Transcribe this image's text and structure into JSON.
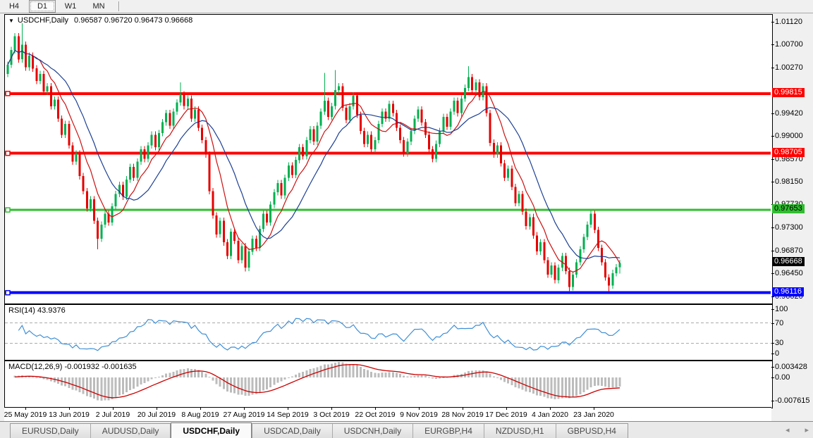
{
  "toolbar": {
    "buttons": [
      {
        "label": "H4",
        "active": false
      },
      {
        "label": "D1",
        "active": true
      },
      {
        "label": "W1",
        "active": false
      },
      {
        "label": "MN",
        "active": false
      }
    ]
  },
  "chart_header": {
    "expander_icon": "▼",
    "symbol": "USDCHF,Daily",
    "quote": "0.96587 0.96720 0.96473 0.96668"
  },
  "chart_data": {
    "type": "candlestick",
    "symbol": "USDCHF",
    "timeframe": "Daily",
    "last_quote": {
      "open": 0.96587,
      "high": 0.9672,
      "low": 0.96473,
      "close": 0.96668
    },
    "open_first": 1.0018,
    "closes": [
      1.0035,
      1.0062,
      1.0088,
      1.0045,
      1.0072,
      1.003,
      1.0052,
      1.0028,
      1.0005,
      1.0018,
      0.9985,
      0.9995,
      0.9958,
      0.997,
      0.9935,
      0.9905,
      0.9925,
      0.9885,
      0.9855,
      0.987,
      0.9828,
      0.98,
      0.9768,
      0.9785,
      0.9745,
      0.9712,
      0.9738,
      0.9758,
      0.9742,
      0.9772,
      0.9795,
      0.9812,
      0.979,
      0.9822,
      0.9845,
      0.9825,
      0.9855,
      0.9878,
      0.986,
      0.9885,
      0.9905,
      0.9882,
      0.9908,
      0.9928,
      0.9945,
      0.9922,
      0.9948,
      0.9965,
      0.998,
      0.9958,
      0.9972,
      0.9935,
      0.9952,
      0.9918,
      0.9895,
      0.9868,
      0.98,
      0.9755,
      0.972,
      0.9745,
      0.9705,
      0.968,
      0.9725,
      0.9708,
      0.9672,
      0.9698,
      0.9658,
      0.9688,
      0.9712,
      0.9695,
      0.973,
      0.9758,
      0.9742,
      0.9775,
      0.9798,
      0.9815,
      0.9792,
      0.9825,
      0.9848,
      0.983,
      0.9858,
      0.9882,
      0.9865,
      0.9895,
      0.9915,
      0.9892,
      0.9922,
      0.9948,
      0.9968,
      0.9938,
      0.9958,
      0.9988,
      0.9995,
      0.9955,
      0.9932,
      0.9958,
      0.9978,
      0.9942,
      0.9912,
      0.9888,
      0.9905,
      0.9878,
      0.9895,
      0.9925,
      0.9948,
      0.9935,
      0.9962,
      0.9945,
      0.9918,
      0.9895,
      0.987,
      0.9892,
      0.9912,
      0.9935,
      0.9952,
      0.9928,
      0.9905,
      0.9878,
      0.986,
      0.9888,
      0.9912,
      0.9938,
      0.992,
      0.9948,
      0.9968,
      0.9945,
      0.9972,
      0.9992,
      1.0012,
      0.9988,
      1.0002,
      0.9975,
      0.9995,
      0.9945,
      0.989,
      0.9868,
      0.9885,
      0.9852,
      0.9825,
      0.9842,
      0.9808,
      0.9778,
      0.9795,
      0.9762,
      0.9735,
      0.9752,
      0.9718,
      0.9688,
      0.9705,
      0.9672,
      0.9645,
      0.9662,
      0.9635,
      0.9658,
      0.968,
      0.9652,
      0.9622,
      0.9645,
      0.9668,
      0.9692,
      0.9715,
      0.9738,
      0.9758,
      0.9728,
      0.9695,
      0.9668,
      0.964,
      0.9625,
      0.9648,
      0.96587,
      0.96668
    ],
    "spike_highs": {
      "4": 1.0112,
      "48": 1.0002,
      "88": 1.002,
      "91": 1.0025,
      "128": 1.0032,
      "162": 0.9764,
      "170": 0.9672
    },
    "spike_lows": {
      "25": 0.9692,
      "66": 0.9651,
      "156": 0.9613,
      "167": 0.9614,
      "170": 0.96473
    },
    "wick": 0.0006,
    "y_axis": {
      "top_price": 1.0112,
      "bottom_price": 0.9602,
      "plain": [
        {
          "label": "1.01120",
          "price": 1.0112
        },
        {
          "label": "1.00700",
          "price": 1.007
        },
        {
          "label": "1.00270",
          "price": 1.0027
        },
        {
          "label": "0.99420",
          "price": 0.9942
        },
        {
          "label": "0.99000",
          "price": 0.99
        },
        {
          "label": "0.98570",
          "price": 0.9857
        },
        {
          "label": "0.98150",
          "price": 0.9815
        },
        {
          "label": "0.97730",
          "price": 0.9773
        },
        {
          "label": "0.97300",
          "price": 0.973
        },
        {
          "label": "0.96870",
          "price": 0.9687
        },
        {
          "label": "0.96450",
          "price": 0.9645
        },
        {
          "label": "0.96020",
          "price": 0.9602
        }
      ]
    },
    "hlines": [
      {
        "price": 0.99815,
        "label": "0.99815",
        "color": "#ff0000",
        "text_color": "#ffffff",
        "width": 4
      },
      {
        "price": 0.98705,
        "label": "0.98705",
        "color": "#ff0000",
        "text_color": "#ffffff",
        "width": 4
      },
      {
        "price": 0.97653,
        "label": "0.97653",
        "color": "#2fbe2f",
        "text_color": "#000000",
        "width": 3
      },
      {
        "price": 0.96116,
        "label": "0.96116",
        "color": "#0000ff",
        "text_color": "#ffffff",
        "width": 4
      }
    ],
    "current_price": {
      "price": 0.96668,
      "label": "0.96668",
      "color": "#000000",
      "text_color": "#ffffff"
    },
    "x_labels": [
      "25 May 2019",
      "13 Jun 2019",
      "2 Jul 2019",
      "20 Jul 2019",
      "8 Aug 2019",
      "27 Aug 2019",
      "14 Sep 2019",
      "3 Oct 2019",
      "22 Oct 2019",
      "9 Nov 2019",
      "28 Nov 2019",
      "17 Dec 2019",
      "4 Jan 2020",
      "23 Jan 2020"
    ],
    "colors": {
      "up": "#00b050",
      "down": "#e60000",
      "ma_fast": "#cc1111",
      "ma_slow": "#1c3f94",
      "rsi": "#3f8fd6",
      "rsi_level": "#aaaaaa",
      "macd_hist": "#bcbcbc",
      "macd_signal": "#cc0000"
    },
    "ma_periods": {
      "fast": 8,
      "slow": 16
    },
    "rsi": {
      "label": "RSI(14) 43.9376",
      "period": 14,
      "current": 43.9376,
      "levels": [
        70,
        30
      ],
      "axis": [
        {
          "label": "100",
          "value": 100
        },
        {
          "label": "70",
          "value": 70
        },
        {
          "label": "30",
          "value": 30
        },
        {
          "label": "0",
          "value": 0
        }
      ]
    },
    "macd": {
      "label": "MACD(12,26,9) -0.001932 -0.001635",
      "fast": 12,
      "slow": 26,
      "signal": 9,
      "current_main": -0.001932,
      "current_signal": -0.001635,
      "axis": [
        {
          "label": "0.003428",
          "value": 0.003428
        },
        {
          "label": "0.00",
          "value": 0
        },
        {
          "label": "-0.007615",
          "value": -0.007615
        }
      ]
    }
  },
  "bottom_tabs": {
    "tabs": [
      {
        "label": "EURUSD,Daily",
        "active": false
      },
      {
        "label": "AUDUSD,Daily",
        "active": false
      },
      {
        "label": "USDCHF,Daily",
        "active": true
      },
      {
        "label": "USDCAD,Daily",
        "active": false
      },
      {
        "label": "USDCNH,Daily",
        "active": false
      },
      {
        "label": "EURGBP,H4",
        "active": false
      },
      {
        "label": "NZDUSD,H1",
        "active": false
      },
      {
        "label": "GBPUSD,H4",
        "active": false
      }
    ],
    "nav_left": "◂",
    "nav_right": "▸"
  }
}
